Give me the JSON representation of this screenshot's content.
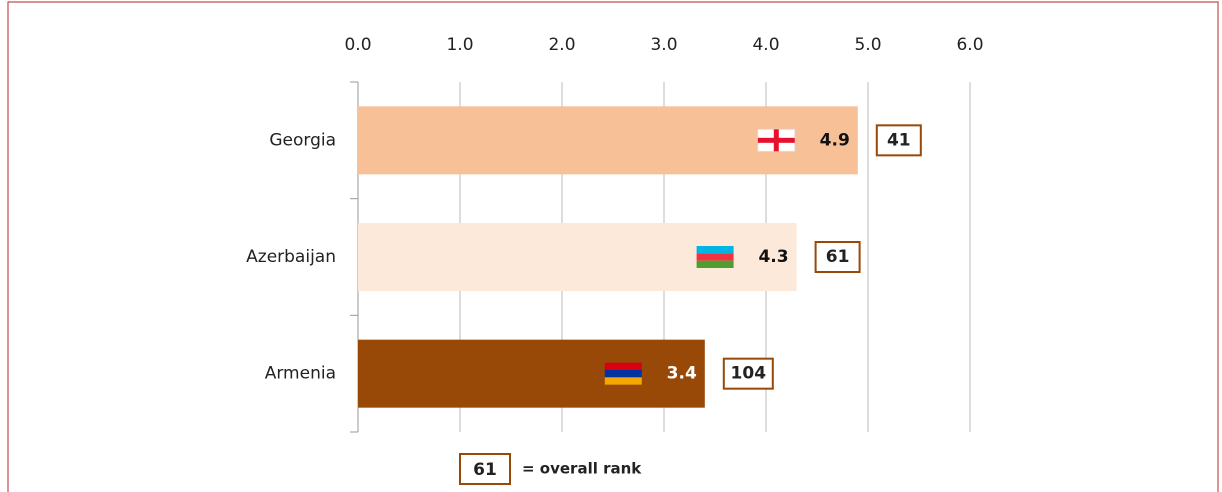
{
  "chart_data": {
    "type": "bar",
    "orientation": "horizontal",
    "categories": [
      "Georgia",
      "Azerbaijan",
      "Armenia"
    ],
    "values": [
      4.9,
      4.3,
      3.4
    ],
    "colors": [
      "#f8c096",
      "#fde9d9",
      "#984807"
    ],
    "ranks": [
      41,
      61,
      104
    ],
    "xlim": [
      0,
      6
    ],
    "xticks": [
      {
        "value": 0,
        "label": "0.0"
      },
      {
        "value": 1,
        "label": "1.0"
      },
      {
        "value": 2,
        "label": "2.0"
      },
      {
        "value": 3,
        "label": "3.0"
      },
      {
        "value": 4,
        "label": "4.0"
      },
      {
        "value": 5,
        "label": "5.0"
      },
      {
        "value": 6,
        "label": "6.0"
      }
    ],
    "grid": true,
    "legend": {
      "box": 61,
      "label": "= overall rank"
    }
  }
}
